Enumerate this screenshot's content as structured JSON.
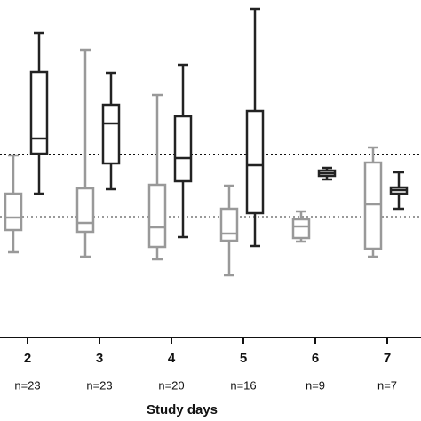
{
  "chart_data": {
    "type": "box",
    "categories": [
      "2",
      "3",
      "4",
      "5",
      "6",
      "7"
    ],
    "n_labels": [
      "n=23",
      "n=23",
      "n=20",
      "n=16",
      "n=9",
      "n=7"
    ],
    "x_label": "Study days",
    "ylim": [
      0,
      380
    ],
    "reference_lines": [
      {
        "value": 206,
        "color": "#111111"
      },
      {
        "value": 136,
        "color": "#999999"
      }
    ],
    "series": [
      {
        "color": "#999999",
        "boxes": [
          {
            "min": 96,
            "q1": 121,
            "median": 135,
            "q3": 162,
            "max": 205
          },
          {
            "min": 91,
            "q1": 119,
            "median": 129,
            "q3": 168,
            "max": 324
          },
          {
            "min": 88,
            "q1": 102,
            "median": 124,
            "q3": 172,
            "max": 273
          },
          {
            "min": 70,
            "q1": 109,
            "median": 117,
            "q3": 145,
            "max": 171
          },
          {
            "min": 108,
            "q1": 112,
            "median": 125,
            "q3": 133,
            "max": 142
          },
          {
            "min": 91,
            "q1": 100,
            "median": 150,
            "q3": 197,
            "max": 214
          }
        ]
      },
      {
        "color": "#222222",
        "boxes": [
          {
            "min": 162,
            "q1": 207,
            "median": 224,
            "q3": 299,
            "max": 343
          },
          {
            "min": 167,
            "q1": 196,
            "median": 241,
            "q3": 262,
            "max": 298
          },
          {
            "min": 113,
            "q1": 176,
            "median": 202,
            "q3": 249,
            "max": 307
          },
          {
            "min": 103,
            "q1": 140,
            "median": 194,
            "q3": 255,
            "max": 370
          },
          {
            "min": 178,
            "q1": 182,
            "median": 185,
            "q3": 188,
            "max": 191
          },
          {
            "min": 145,
            "q1": 162,
            "median": 166,
            "q3": 169,
            "max": 186
          }
        ]
      }
    ]
  }
}
